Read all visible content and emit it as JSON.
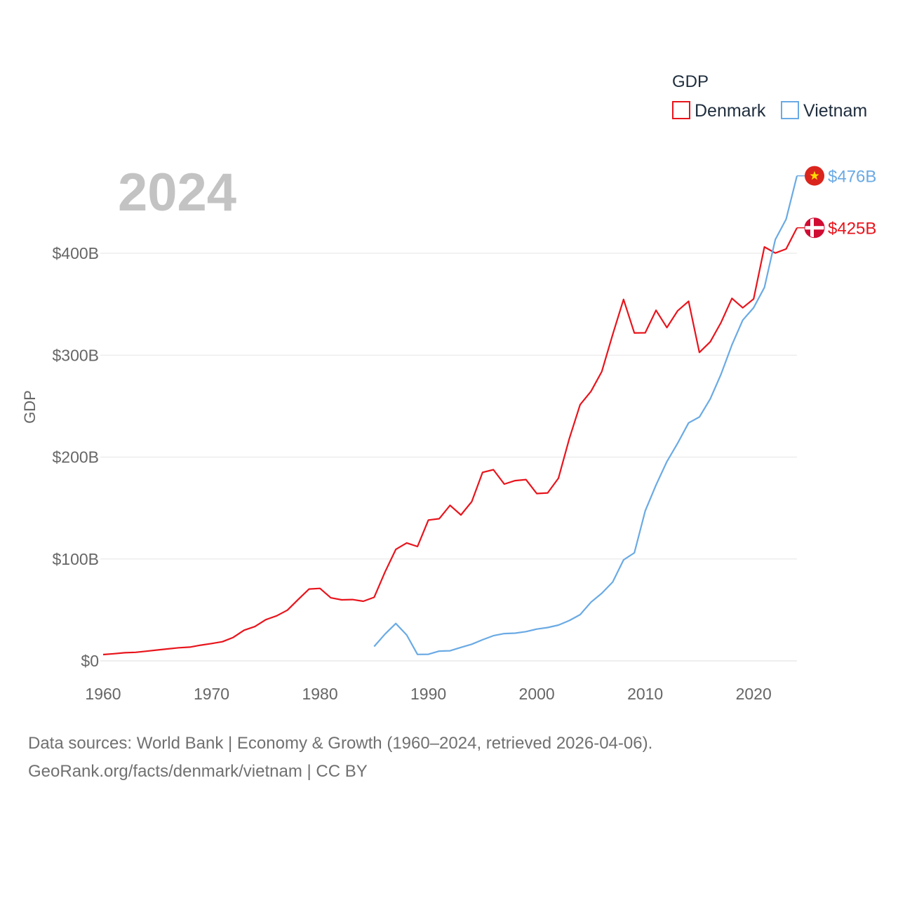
{
  "chart_data": {
    "type": "line",
    "title": "",
    "year_label": "2024",
    "ylabel": "GDP",
    "xlabel": "",
    "xlim": [
      1960,
      2024
    ],
    "ylim": [
      0,
      400
    ],
    "x_ticks": [
      1960,
      1970,
      1980,
      1990,
      2000,
      2010,
      2020
    ],
    "y_ticks": [
      {
        "value": 0,
        "label": "$0"
      },
      {
        "value": 100,
        "label": "$100B"
      },
      {
        "value": 200,
        "label": "$200B"
      },
      {
        "value": 300,
        "label": "$300B"
      },
      {
        "value": 400,
        "label": "$400B"
      }
    ],
    "legend_title": "GDP",
    "legend_position": "top-right",
    "units": "billion USD",
    "series": [
      {
        "name": "Denmark",
        "color": "#e8141c",
        "flag": "denmark-flag",
        "end_label": "$425B",
        "x": [
          1960,
          1961,
          1962,
          1963,
          1964,
          1965,
          1966,
          1967,
          1968,
          1969,
          1970,
          1971,
          1972,
          1973,
          1974,
          1975,
          1976,
          1977,
          1978,
          1979,
          1980,
          1981,
          1982,
          1983,
          1984,
          1985,
          1986,
          1987,
          1988,
          1989,
          1990,
          1991,
          1992,
          1993,
          1994,
          1995,
          1996,
          1997,
          1998,
          1999,
          2000,
          2001,
          2002,
          2003,
          2004,
          2005,
          2006,
          2007,
          2008,
          2009,
          2010,
          2011,
          2012,
          2013,
          2014,
          2015,
          2016,
          2017,
          2018,
          2019,
          2020,
          2021,
          2022,
          2023,
          2024
        ],
        "values": [
          6.2,
          7.0,
          8.0,
          8.4,
          9.5,
          10.7,
          11.8,
          12.9,
          13.5,
          15.4,
          17.0,
          18.8,
          23.0,
          30.1,
          33.7,
          40.4,
          44.2,
          49.8,
          60.4,
          70.5,
          71.1,
          61.9,
          59.9,
          60.2,
          58.5,
          62.4,
          87.2,
          109.4,
          115.7,
          112.2,
          138.2,
          139.5,
          152.6,
          143.2,
          156.2,
          185.0,
          187.6,
          173.5,
          176.9,
          177.9,
          164.2,
          164.8,
          179.3,
          218.1,
          251.4,
          264.5,
          283.9,
          320.2,
          354.7,
          321.8,
          321.9,
          344.0,
          327.1,
          343.6,
          352.9,
          302.7,
          313.1,
          332.1,
          355.7,
          346.5,
          355.2,
          406.2,
          400.2,
          404.2,
          425.0
        ]
      },
      {
        "name": "Vietnam",
        "color": "#6aaae4",
        "flag": "vietnam-flag",
        "end_label": "$476B",
        "x": [
          1985,
          1986,
          1987,
          1988,
          1989,
          1990,
          1991,
          1992,
          1993,
          1994,
          1995,
          1996,
          1997,
          1998,
          1999,
          2000,
          2001,
          2002,
          2003,
          2004,
          2005,
          2006,
          2007,
          2008,
          2009,
          2010,
          2011,
          2012,
          2013,
          2014,
          2015,
          2016,
          2017,
          2018,
          2019,
          2020,
          2021,
          2022,
          2023,
          2024
        ],
        "values": [
          14.1,
          26.3,
          36.7,
          25.4,
          6.3,
          6.5,
          9.6,
          9.9,
          13.2,
          16.3,
          20.7,
          24.7,
          26.8,
          27.2,
          28.7,
          31.2,
          32.7,
          35.1,
          39.6,
          45.4,
          57.6,
          66.4,
          77.4,
          99.1,
          106.0,
          147.2,
          172.6,
          195.6,
          213.7,
          233.5,
          239.3,
          257.1,
          281.4,
          310.1,
          334.4,
          346.6,
          366.5,
          413.4,
          433.4,
          476.0
        ]
      }
    ]
  },
  "legend": {
    "title": "GDP",
    "items": [
      {
        "label": "Denmark",
        "color": "#e8141c"
      },
      {
        "label": "Vietnam",
        "color": "#6aaae4"
      }
    ]
  },
  "source": {
    "line1": "Data sources: World Bank | Economy & Growth (1960–2024, retrieved 2026-04-06).",
    "line2": "GeoRank.org/facts/denmark/vietnam | CC BY"
  },
  "flags": {
    "denmark": {
      "field": "#d00c33",
      "cross": "#ffffff"
    },
    "vietnam": {
      "field": "#da251d",
      "star": "#ffdd00"
    }
  }
}
